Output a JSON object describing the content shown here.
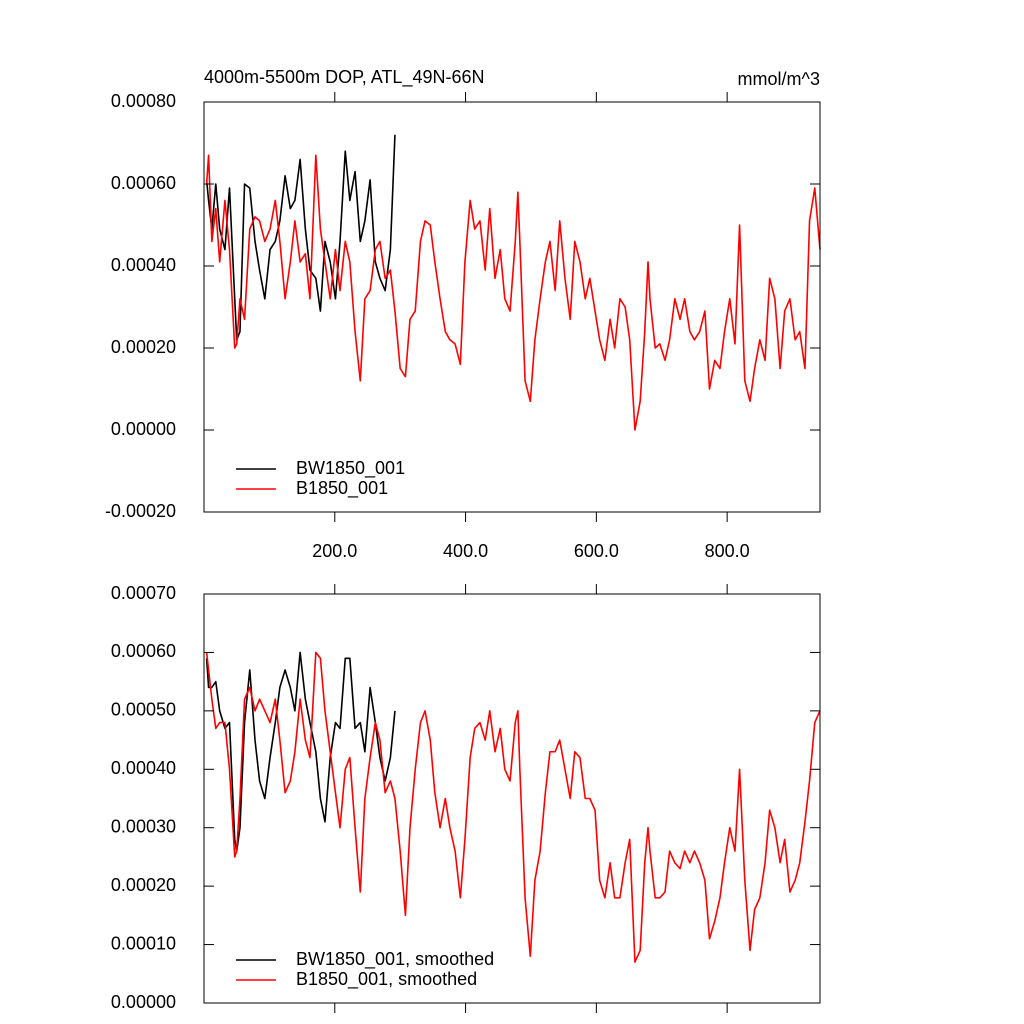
{
  "chart_data": [
    {
      "type": "line",
      "title": "4000m-5500m DOP, ATL_49N-66N",
      "units": "mmol/m^3",
      "xlim": [
        0,
        942
      ],
      "xticks": [
        {
          "value": 200,
          "label": "200.0"
        },
        {
          "value": 400,
          "label": "400.0"
        },
        {
          "value": 600,
          "label": "600.0"
        },
        {
          "value": 800,
          "label": "800.0"
        }
      ],
      "ylim": [
        -0.0002,
        0.0008
      ],
      "yticks": [
        {
          "value": -0.0002,
          "label": "-0.00020"
        },
        {
          "value": 0,
          "label": "0.00000"
        },
        {
          "value": 0.0002,
          "label": "0.00020"
        },
        {
          "value": 0.0004,
          "label": "0.00040"
        },
        {
          "value": 0.0006,
          "label": "0.00060"
        },
        {
          "value": 0.0008,
          "label": "0.00080"
        }
      ],
      "legend": "lower left",
      "series": [
        {
          "name": "BW1850_001",
          "color": "#000000",
          "x": [
            4,
            7,
            12,
            18,
            24,
            32,
            39,
            47,
            50,
            55,
            62,
            70,
            78,
            85,
            93,
            101,
            109,
            116,
            124,
            132,
            139,
            147,
            155,
            162,
            171,
            178,
            185,
            193,
            201,
            208,
            216,
            223,
            231,
            239,
            246,
            254,
            262,
            269,
            277,
            285,
            292
          ],
          "values": [
            0.00061,
            0.00056,
            0.00049,
            0.0006,
            0.00049,
            0.00044,
            0.00059,
            0.00032,
            0.00022,
            0.00024,
            0.0006,
            0.00059,
            0.00046,
            0.00039,
            0.00032,
            0.00044,
            0.00046,
            0.00051,
            0.00062,
            0.00054,
            0.00056,
            0.00066,
            0.00049,
            0.00039,
            0.00037,
            0.00029,
            0.00046,
            0.00041,
            0.00032,
            0.00046,
            0.00068,
            0.00056,
            0.00063,
            0.00046,
            0.00051,
            0.00061,
            0.00041,
            0.00037,
            0.00034,
            0.00044,
            0.00072
          ]
        },
        {
          "name": "B1850_001",
          "color": "#ff0000",
          "x": [
            4,
            7,
            12,
            18,
            24,
            32,
            39,
            47,
            50,
            55,
            62,
            70,
            78,
            85,
            93,
            101,
            109,
            116,
            124,
            132,
            139,
            147,
            155,
            162,
            171,
            178,
            185,
            193,
            201,
            208,
            216,
            223,
            231,
            239,
            246,
            254,
            262,
            269,
            277,
            285,
            292,
            300,
            308,
            315,
            323,
            331,
            338,
            346,
            353,
            361,
            369,
            376,
            384,
            392,
            399,
            407,
            414,
            422,
            430,
            437,
            445,
            453,
            460,
            468,
            476,
            480,
            483,
            491,
            499,
            506,
            514,
            522,
            529,
            537,
            544,
            552,
            560,
            567,
            575,
            583,
            590,
            598,
            605,
            613,
            621,
            628,
            636,
            644,
            651,
            659,
            667,
            674,
            679,
            682,
            690,
            697,
            705,
            712,
            720,
            728,
            735,
            743,
            750,
            758,
            766,
            773,
            781,
            789,
            796,
            804,
            812,
            819,
            827,
            835,
            842,
            850,
            858,
            865,
            873,
            881,
            888,
            896,
            904,
            911,
            919,
            926,
            934,
            942
          ],
          "values": [
            0.0006,
            0.00067,
            0.00046,
            0.00054,
            0.00041,
            0.00056,
            0.00044,
            0.0002,
            0.00021,
            0.00032,
            0.00027,
            0.00049,
            0.00052,
            0.00051,
            0.00046,
            0.00049,
            0.00056,
            0.00046,
            0.00032,
            0.00041,
            0.00051,
            0.00041,
            0.00043,
            0.00032,
            0.00067,
            0.00049,
            0.00041,
            0.00032,
            0.00044,
            0.00034,
            0.00046,
            0.00041,
            0.00024,
            0.00012,
            0.00032,
            0.00034,
            0.00044,
            0.00046,
            0.00037,
            0.00039,
            0.00029,
            0.00015,
            0.00013,
            0.00027,
            0.00029,
            0.00046,
            0.00051,
            0.0005,
            0.00041,
            0.00032,
            0.00024,
            0.00022,
            0.00021,
            0.00016,
            0.00041,
            0.00056,
            0.00049,
            0.00051,
            0.00039,
            0.00054,
            0.00037,
            0.00044,
            0.00032,
            0.00029,
            0.00046,
            0.00058,
            0.00046,
            0.00012,
            7e-05,
            0.00022,
            0.00032,
            0.00041,
            0.00046,
            0.00034,
            0.00051,
            0.00037,
            0.00027,
            0.00046,
            0.00041,
            0.00032,
            0.00037,
            0.00029,
            0.00022,
            0.00017,
            0.00027,
            0.0002,
            0.00032,
            0.0003,
            0.00022,
            0,
            7e-05,
            0.00024,
            0.00041,
            0.00032,
            0.0002,
            0.00021,
            0.00017,
            0.00022,
            0.00032,
            0.00027,
            0.00032,
            0.00024,
            0.00022,
            0.00024,
            0.00029,
            0.0001,
            0.00017,
            0.00015,
            0.00024,
            0.00032,
            0.00021,
            0.0005,
            0.00012,
            7e-05,
            0.00015,
            0.00022,
            0.00017,
            0.00037,
            0.00032,
            0.00015,
            0.00029,
            0.00032,
            0.00022,
            0.00024,
            0.00015,
            0.00051,
            0.00059,
            0.00044
          ]
        }
      ]
    },
    {
      "type": "line",
      "xlim": [
        0,
        942
      ],
      "xticks": [
        200,
        400,
        600,
        800
      ],
      "xtick_labels": false,
      "ylim": [
        0,
        0.0007
      ],
      "yticks": [
        {
          "value": 0,
          "label": "0.00000"
        },
        {
          "value": 0.0001,
          "label": "0.00010"
        },
        {
          "value": 0.0002,
          "label": "0.00020"
        },
        {
          "value": 0.0003,
          "label": "0.00030"
        },
        {
          "value": 0.0004,
          "label": "0.00040"
        },
        {
          "value": 0.0005,
          "label": "0.00050"
        },
        {
          "value": 0.0006,
          "label": "0.00060"
        },
        {
          "value": 0.0007,
          "label": "0.00070"
        }
      ],
      "legend": "lower left",
      "series": [
        {
          "name": "BW1850_001, smoothed",
          "color": "#000000",
          "x": [
            4,
            7,
            12,
            18,
            24,
            32,
            39,
            47,
            50,
            55,
            62,
            70,
            78,
            85,
            93,
            101,
            109,
            116,
            124,
            132,
            139,
            147,
            155,
            162,
            171,
            178,
            185,
            193,
            201,
            208,
            216,
            223,
            231,
            239,
            246,
            254,
            262,
            269,
            277,
            285,
            292
          ],
          "values": [
            0.00059,
            0.00054,
            0.00054,
            0.00055,
            0.0005,
            0.00047,
            0.00048,
            0.00028,
            0.00026,
            0.0003,
            0.00048,
            0.00057,
            0.00045,
            0.00038,
            0.00035,
            0.00042,
            0.00048,
            0.00054,
            0.00057,
            0.00054,
            0.0005,
            0.0006,
            0.00052,
            0.00048,
            0.00043,
            0.00035,
            0.00031,
            0.00042,
            0.00048,
            0.00047,
            0.00059,
            0.00059,
            0.00047,
            0.00048,
            0.00043,
            0.00054,
            0.00048,
            0.00042,
            0.00038,
            0.00042,
            0.0005
          ]
        },
        {
          "name": "B1850_001, smoothed",
          "color": "#ff0000",
          "x": [
            4,
            7,
            12,
            18,
            24,
            32,
            39,
            47,
            50,
            55,
            62,
            70,
            78,
            85,
            93,
            101,
            109,
            116,
            124,
            132,
            139,
            147,
            155,
            162,
            171,
            178,
            185,
            193,
            201,
            208,
            216,
            223,
            231,
            239,
            246,
            254,
            262,
            269,
            277,
            285,
            292,
            300,
            308,
            315,
            323,
            331,
            338,
            346,
            353,
            361,
            369,
            376,
            384,
            392,
            399,
            407,
            414,
            422,
            430,
            437,
            445,
            453,
            460,
            468,
            476,
            480,
            483,
            491,
            499,
            506,
            514,
            522,
            529,
            537,
            544,
            552,
            560,
            567,
            575,
            583,
            590,
            598,
            605,
            613,
            621,
            628,
            636,
            644,
            651,
            659,
            667,
            674,
            679,
            682,
            690,
            697,
            705,
            712,
            720,
            728,
            735,
            743,
            750,
            758,
            766,
            773,
            781,
            789,
            796,
            804,
            812,
            819,
            827,
            835,
            842,
            850,
            858,
            865,
            873,
            881,
            888,
            896,
            904,
            911,
            919,
            926,
            934,
            942
          ],
          "values": [
            0.0006,
            0.00057,
            0.00052,
            0.00047,
            0.00048,
            0.00048,
            0.0004,
            0.00025,
            0.00026,
            0.00035,
            0.00052,
            0.00054,
            0.0005,
            0.00052,
            0.0005,
            0.00048,
            0.00052,
            0.00045,
            0.00036,
            0.00038,
            0.00043,
            0.00052,
            0.00045,
            0.00042,
            0.0006,
            0.00059,
            0.0005,
            0.00043,
            0.00036,
            0.0003,
            0.0004,
            0.00042,
            0.0003,
            0.00019,
            0.00035,
            0.00042,
            0.00048,
            0.00045,
            0.00036,
            0.00038,
            0.00035,
            0.00026,
            0.00015,
            0.0003,
            0.0004,
            0.00048,
            0.0005,
            0.00045,
            0.00036,
            0.0003,
            0.00035,
            0.0003,
            0.00026,
            0.00018,
            0.00028,
            0.00042,
            0.00047,
            0.00048,
            0.00045,
            0.0005,
            0.00043,
            0.00047,
            0.0004,
            0.00038,
            0.00048,
            0.0005,
            0.0004,
            0.00018,
            8e-05,
            0.00021,
            0.00026,
            0.00036,
            0.00043,
            0.00043,
            0.00045,
            0.0004,
            0.00035,
            0.00043,
            0.00042,
            0.00035,
            0.00035,
            0.00033,
            0.00021,
            0.00018,
            0.00024,
            0.00018,
            0.00018,
            0.00024,
            0.00028,
            7e-05,
            9e-05,
            0.00024,
            0.0003,
            0.00026,
            0.00018,
            0.00018,
            0.00019,
            0.00026,
            0.00024,
            0.00023,
            0.00026,
            0.00024,
            0.00026,
            0.00024,
            0.00021,
            0.00011,
            0.00014,
            0.00018,
            0.00024,
            0.0003,
            0.00026,
            0.0004,
            0.00021,
            9e-05,
            0.00016,
            0.00018,
            0.00024,
            0.00033,
            0.0003,
            0.00024,
            0.00028,
            0.00019,
            0.00021,
            0.00024,
            0.00031,
            0.00038,
            0.00048,
            0.0005
          ]
        }
      ]
    }
  ]
}
